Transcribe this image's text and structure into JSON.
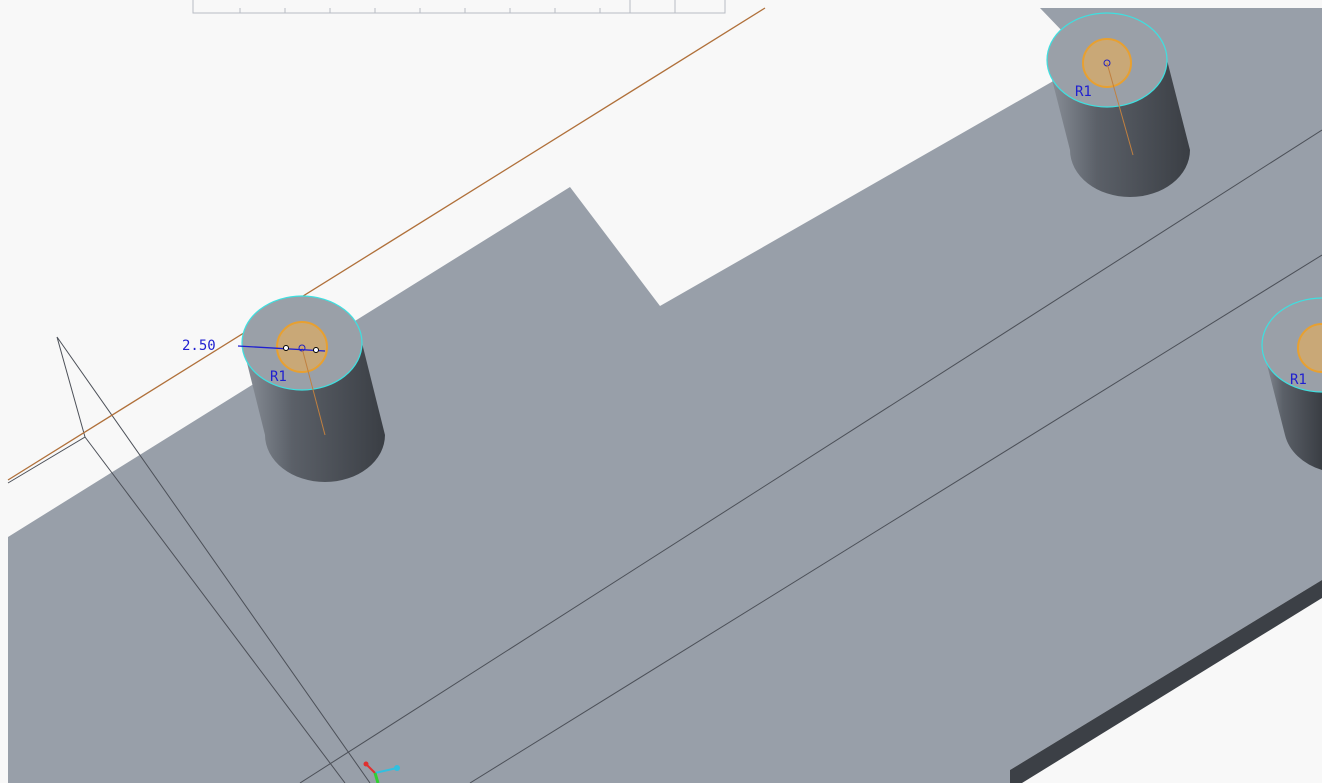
{
  "dimension": {
    "label": "2.50"
  },
  "radius_labels": [
    "R1",
    "R1",
    "R1"
  ]
}
